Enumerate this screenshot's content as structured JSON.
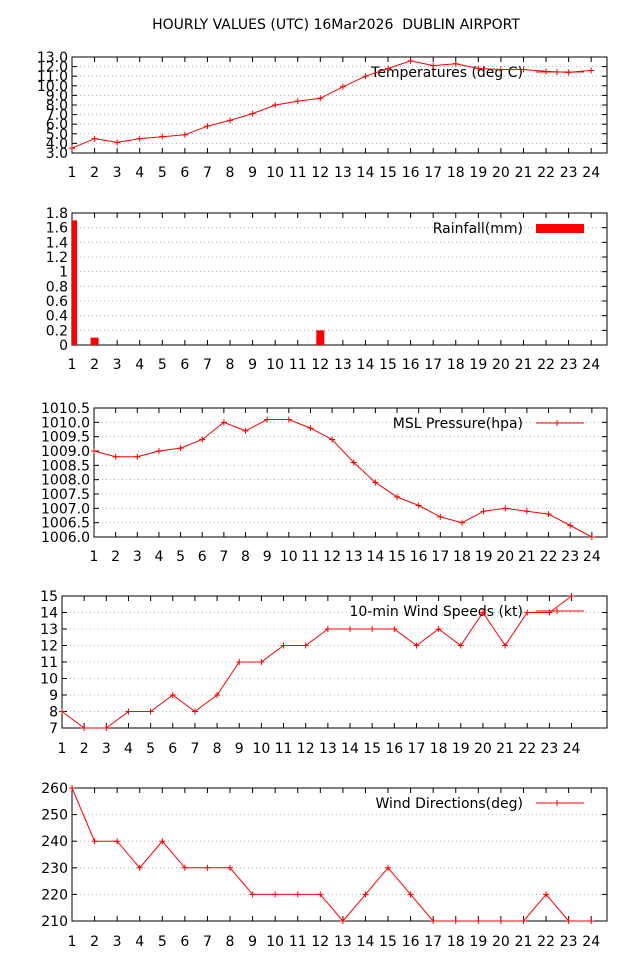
{
  "title": "HOURLY VALUES (UTC) 16Mar2026  DUBLIN AIRPORT",
  "chart_data": [
    {
      "id": "temperature",
      "type": "line",
      "legend": "Temperatures (deg C)",
      "x": [
        1,
        2,
        3,
        4,
        5,
        6,
        7,
        8,
        9,
        10,
        11,
        12,
        13,
        14,
        15,
        16,
        17,
        18,
        19,
        20,
        21,
        22,
        23,
        24
      ],
      "values": [
        3.5,
        4.5,
        4.1,
        4.5,
        4.7,
        4.9,
        5.8,
        6.4,
        7.1,
        8.0,
        8.4,
        8.7,
        9.9,
        11.0,
        11.8,
        12.6,
        12.1,
        12.3,
        11.8,
        11.7,
        11.7,
        11.5,
        11.4,
        11.6
      ],
      "ylim": [
        3.0,
        13.0
      ],
      "yticks": [
        "3.0",
        "4.0",
        "5.0",
        "6.0",
        "7.0",
        "8.0",
        "9.0",
        "10.0",
        "11.0",
        "12.0",
        "13.0"
      ],
      "xticks": [
        "1",
        "2",
        "3",
        "4",
        "5",
        "6",
        "7",
        "8",
        "9",
        "10",
        "11",
        "12",
        "13",
        "14",
        "15",
        "16",
        "17",
        "18",
        "19",
        "20",
        "21",
        "22",
        "23",
        "24"
      ],
      "grid": true,
      "legend_position": "top-right",
      "color": "#ff0000"
    },
    {
      "id": "rainfall",
      "type": "bar",
      "legend": "Rainfall(mm)",
      "x": [
        1,
        2,
        3,
        4,
        5,
        6,
        7,
        8,
        9,
        10,
        11,
        12,
        13,
        14,
        15,
        16,
        17,
        18,
        19,
        20,
        21,
        22,
        23,
        24
      ],
      "values": [
        1.7,
        0.1,
        0,
        0,
        0,
        0,
        0,
        0,
        0,
        0,
        0,
        0.2,
        0,
        0,
        0,
        0,
        0,
        0,
        0,
        0,
        0,
        0,
        0,
        0
      ],
      "ylim": [
        0,
        1.8
      ],
      "yticks": [
        "0",
        "0.2",
        "0.4",
        "0.6",
        "0.8",
        "1",
        "1.2",
        "1.4",
        "1.6",
        "1.8"
      ],
      "xticks": [
        "1",
        "2",
        "3",
        "4",
        "5",
        "6",
        "7",
        "8",
        "9",
        "10",
        "11",
        "12",
        "13",
        "14",
        "15",
        "16",
        "17",
        "18",
        "19",
        "20",
        "21",
        "22",
        "23",
        "24"
      ],
      "grid": true,
      "legend_position": "top-right",
      "color": "#ff0000"
    },
    {
      "id": "pressure",
      "type": "line",
      "legend": "MSL Pressure(hpa)",
      "x": [
        1,
        2,
        3,
        4,
        5,
        6,
        7,
        8,
        9,
        10,
        11,
        12,
        13,
        14,
        15,
        16,
        17,
        18,
        19,
        20,
        21,
        22,
        23,
        24
      ],
      "values": [
        1009.0,
        1008.8,
        1008.8,
        1009.0,
        1009.1,
        1009.4,
        1010.0,
        1009.7,
        1010.1,
        1010.1,
        1009.8,
        1009.4,
        1008.6,
        1007.9,
        1007.4,
        1007.1,
        1006.7,
        1006.5,
        1006.9,
        1007.0,
        1006.9,
        1006.8,
        1006.4,
        1006.0
      ],
      "ylim": [
        1006.0,
        1010.5
      ],
      "yticks": [
        "1006.0",
        "1006.5",
        "1007.0",
        "1007.5",
        "1008.0",
        "1008.5",
        "1009.0",
        "1009.5",
        "1010.0",
        "1010.5"
      ],
      "xticks": [
        "1",
        "2",
        "3",
        "4",
        "5",
        "6",
        "7",
        "8",
        "9",
        "10",
        "11",
        "12",
        "13",
        "14",
        "15",
        "16",
        "17",
        "18",
        "19",
        "20",
        "21",
        "22",
        "23",
        "24"
      ],
      "grid": true,
      "legend_position": "top-right",
      "color": "#ff0000"
    },
    {
      "id": "wind_speed",
      "type": "line",
      "legend": "10-min Wind Speeds (kt)",
      "x": [
        1,
        2,
        3,
        4,
        5,
        6,
        7,
        8,
        9,
        10,
        11,
        12,
        13,
        14,
        15,
        16,
        17,
        18,
        19,
        20,
        21,
        22,
        23,
        24
      ],
      "values": [
        8,
        7,
        7,
        8,
        8,
        9,
        8,
        9,
        11,
        11,
        12,
        12,
        13,
        13,
        13,
        13,
        12,
        13,
        12,
        14,
        12,
        14,
        14,
        15
      ],
      "ylim": [
        7,
        15
      ],
      "yticks": [
        "7",
        "8",
        "9",
        "10",
        "11",
        "12",
        "13",
        "14",
        "15"
      ],
      "xticks": [
        "1",
        "2",
        "3",
        "4",
        "5",
        "6",
        "7",
        "8",
        "9",
        "10",
        "11",
        "12",
        "13",
        "14",
        "15",
        "16",
        "17",
        "18",
        "19",
        "20",
        "21",
        "22",
        "23",
        "24"
      ],
      "grid": true,
      "legend_position": "top-right",
      "color": "#ff0000"
    },
    {
      "id": "wind_direction",
      "type": "line",
      "legend": "Wind Directions(deg)",
      "x": [
        1,
        2,
        3,
        4,
        5,
        6,
        7,
        8,
        9,
        10,
        11,
        12,
        13,
        14,
        15,
        16,
        17,
        18,
        19,
        20,
        21,
        22,
        23,
        24
      ],
      "values": [
        260,
        240,
        240,
        230,
        240,
        230,
        230,
        230,
        220,
        220,
        220,
        220,
        210,
        220,
        230,
        220,
        210,
        210,
        210,
        210,
        210,
        220,
        210,
        210
      ],
      "ylim": [
        210,
        260
      ],
      "yticks": [
        "210",
        "220",
        "230",
        "240",
        "250",
        "260"
      ],
      "xticks": [
        "1",
        "2",
        "3",
        "4",
        "5",
        "6",
        "7",
        "8",
        "9",
        "10",
        "11",
        "12",
        "13",
        "14",
        "15",
        "16",
        "17",
        "18",
        "19",
        "20",
        "21",
        "22",
        "23",
        "24"
      ],
      "grid": true,
      "legend_position": "top-right",
      "color": "#ff0000"
    }
  ]
}
